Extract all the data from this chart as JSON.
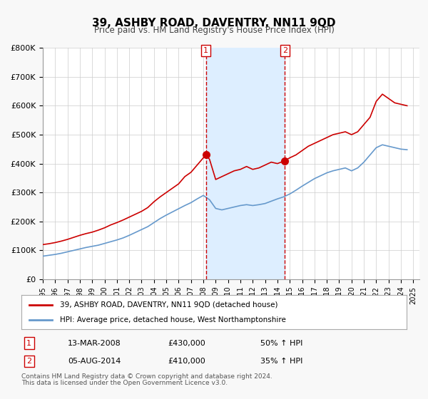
{
  "title": "39, ASHBY ROAD, DAVENTRY, NN11 9QD",
  "subtitle": "Price paid vs. HM Land Registry's House Price Index (HPI)",
  "xlim": [
    1995.0,
    2025.5
  ],
  "ylim": [
    0,
    800000
  ],
  "yticks": [
    0,
    100000,
    200000,
    300000,
    400000,
    500000,
    600000,
    700000,
    800000
  ],
  "ytick_labels": [
    "£0",
    "£100K",
    "£200K",
    "£300K",
    "£400K",
    "£500K",
    "£600K",
    "£700K",
    "£800K"
  ],
  "xticks": [
    1995,
    1996,
    1997,
    1998,
    1999,
    2000,
    2001,
    2002,
    2003,
    2004,
    2005,
    2006,
    2007,
    2008,
    2009,
    2010,
    2011,
    2012,
    2013,
    2014,
    2015,
    2016,
    2017,
    2018,
    2019,
    2020,
    2021,
    2022,
    2023,
    2024,
    2025
  ],
  "line1_color": "#cc0000",
  "line2_color": "#6699cc",
  "shade_color": "#ddeeff",
  "vline_color": "#cc0000",
  "marker1_x": 2008.2,
  "marker1_y": 430000,
  "marker2_x": 2014.6,
  "marker2_y": 410000,
  "label1": "1",
  "label2": "2",
  "legend1_text": "39, ASHBY ROAD, DAVENTRY, NN11 9QD (detached house)",
  "legend2_text": "HPI: Average price, detached house, West Northamptonshire",
  "table_row1": [
    "1",
    "13-MAR-2008",
    "£430,000",
    "50% ↑ HPI"
  ],
  "table_row2": [
    "2",
    "05-AUG-2014",
    "£410,000",
    "35% ↑ HPI"
  ],
  "footer1": "Contains HM Land Registry data © Crown copyright and database right 2024.",
  "footer2": "This data is licensed under the Open Government Licence v3.0.",
  "background_color": "#f8f8f8",
  "plot_background": "#ffffff"
}
